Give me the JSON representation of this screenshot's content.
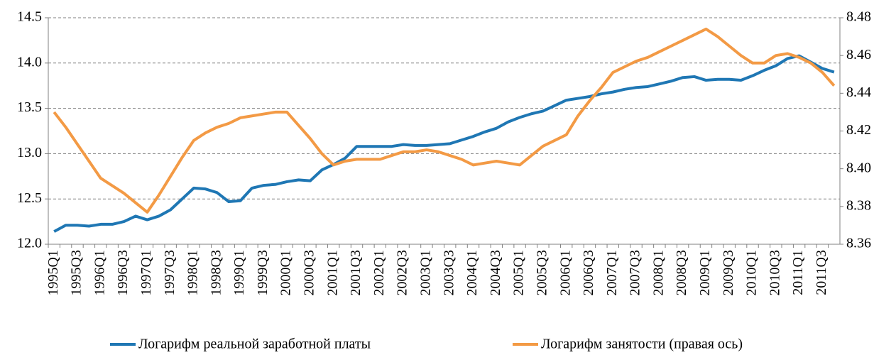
{
  "chart_data": {
    "type": "line",
    "categories": [
      "1995Q1",
      null,
      "1995Q3",
      null,
      "1996Q1",
      null,
      "1996Q3",
      null,
      "1997Q1",
      null,
      "1997Q3",
      null,
      "1998Q1",
      null,
      "1998Q3",
      null,
      "1999Q1",
      null,
      "1999Q3",
      null,
      "2000Q1",
      null,
      "2000Q3",
      null,
      "2001Q1",
      null,
      "2001Q3",
      null,
      "2002Q1",
      null,
      "2002Q3",
      null,
      "2003Q1",
      null,
      "2003Q3",
      null,
      "2004Q1",
      null,
      "2004Q3",
      null,
      "2005Q1",
      null,
      "2005Q3",
      null,
      "2006Q1",
      null,
      "2006Q3",
      null,
      "2007Q1",
      null,
      "2007Q3",
      null,
      "2008Q1",
      null,
      "2008Q3",
      null,
      "2009Q1",
      null,
      "2009Q3",
      null,
      "2010Q1",
      null,
      "2010Q3",
      null,
      "2011Q1",
      null,
      "2011Q3",
      null
    ],
    "series": [
      {
        "name": "Логарифм реальной заработной платы",
        "color": "#1f77b4",
        "values": [
          12.14,
          12.21,
          12.21,
          12.2,
          12.22,
          12.22,
          12.25,
          12.31,
          12.27,
          12.31,
          12.38,
          12.5,
          12.62,
          12.61,
          12.57,
          12.47,
          12.48,
          12.62,
          12.65,
          12.66,
          12.69,
          12.71,
          12.7,
          12.82,
          12.88,
          12.95,
          13.08,
          13.08,
          13.08,
          13.08,
          13.1,
          13.09,
          13.09,
          13.1,
          13.11,
          13.15,
          13.19,
          13.24,
          13.28,
          13.35,
          13.4,
          13.44,
          13.47,
          13.53,
          13.59,
          13.61,
          13.63,
          13.66,
          13.68,
          13.71,
          13.73,
          13.74,
          13.77,
          13.8,
          13.84,
          13.85,
          13.81,
          13.82,
          13.82,
          13.81,
          13.86,
          13.92,
          13.97,
          14.05,
          14.08,
          14.01,
          13.94,
          13.9
        ]
      },
      {
        "name": "Логарифм занятости (правая ось)",
        "color": "#f39a45",
        "axis": "y2",
        "values": [
          8.43,
          8.422,
          8.413,
          8.404,
          8.395,
          8.391,
          8.387,
          8.382,
          8.377,
          8.386,
          8.396,
          8.406,
          8.415,
          8.419,
          8.422,
          8.424,
          8.427,
          8.428,
          8.429,
          8.43,
          8.43,
          8.423,
          8.416,
          8.408,
          8.402,
          8.404,
          8.405,
          8.405,
          8.405,
          8.407,
          8.409,
          8.409,
          8.41,
          8.409,
          8.407,
          8.405,
          8.402,
          8.403,
          8.404,
          8.403,
          8.402,
          8.407,
          8.412,
          8.415,
          8.418,
          8.428,
          8.436,
          8.443,
          8.451,
          8.454,
          8.457,
          8.459,
          8.462,
          8.465,
          8.468,
          8.471,
          8.474,
          8.47,
          8.465,
          8.46,
          8.456,
          8.456,
          8.46,
          8.461,
          8.459,
          8.456,
          8.451,
          8.444
        ]
      }
    ],
    "ylim": [
      12,
      14.5
    ],
    "yticks": [
      {
        "value": 12,
        "label": "12.0"
      },
      12.5,
      {
        "value": 13,
        "label": "13.0"
      },
      13.5,
      {
        "value": 14,
        "label": "14.0"
      },
      14.5
    ],
    "y2lim": [
      8.36,
      8.48
    ],
    "y2ticks": [
      8.36,
      8.38,
      {
        "value": 8.4,
        "label": "8.40"
      },
      8.42,
      8.44,
      8.46,
      8.48
    ],
    "grid": true,
    "legend": "bottom"
  }
}
